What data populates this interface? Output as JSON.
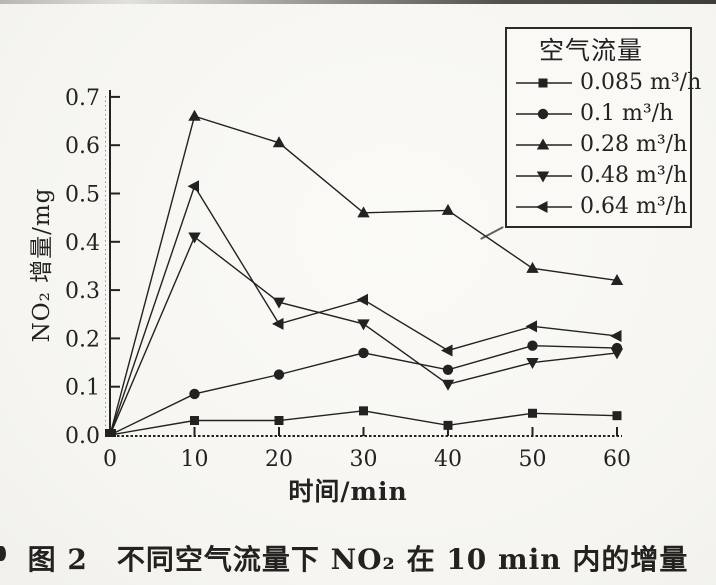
{
  "figure": {
    "caption": "图 2　不同空气流量下 NO₂ 在 10 min 内的增量"
  },
  "chart_data": {
    "type": "line",
    "title": "",
    "xlabel": "时间/min",
    "ylabel": "NO₂ 增量/mg",
    "xlim": [
      0,
      60
    ],
    "ylim": [
      0.0,
      0.7
    ],
    "x_ticks": [
      "0",
      "10",
      "20",
      "30",
      "40",
      "50",
      "60"
    ],
    "y_ticks": [
      "0.0",
      "0.1",
      "0.2",
      "0.3",
      "0.4",
      "0.5",
      "0.6",
      "0.7"
    ],
    "grid": false,
    "legend": {
      "title": "空气流量",
      "position": "top-right"
    },
    "x": [
      0,
      10,
      20,
      30,
      40,
      50,
      60
    ],
    "series": [
      {
        "name": "0.085 m³/h",
        "marker": "square",
        "values": [
          0,
          0.03,
          0.03,
          0.05,
          0.02,
          0.045,
          0.04
        ]
      },
      {
        "name": "0.1 m³/h",
        "marker": "circle",
        "values": [
          0,
          0.085,
          0.125,
          0.17,
          0.135,
          0.185,
          0.18
        ]
      },
      {
        "name": "0.28 m³/h",
        "marker": "triangle-up",
        "values": [
          0,
          0.66,
          0.605,
          0.46,
          0.465,
          0.345,
          0.32
        ]
      },
      {
        "name": "0.48 m³/h",
        "marker": "triangle-down",
        "values": [
          0,
          0.41,
          0.275,
          0.23,
          0.105,
          0.15,
          0.17
        ]
      },
      {
        "name": "0.64 m³/h",
        "marker": "triangle-left",
        "values": [
          0,
          0.515,
          0.23,
          0.28,
          0.175,
          0.225,
          0.205
        ]
      }
    ],
    "line_color": "#232220"
  }
}
